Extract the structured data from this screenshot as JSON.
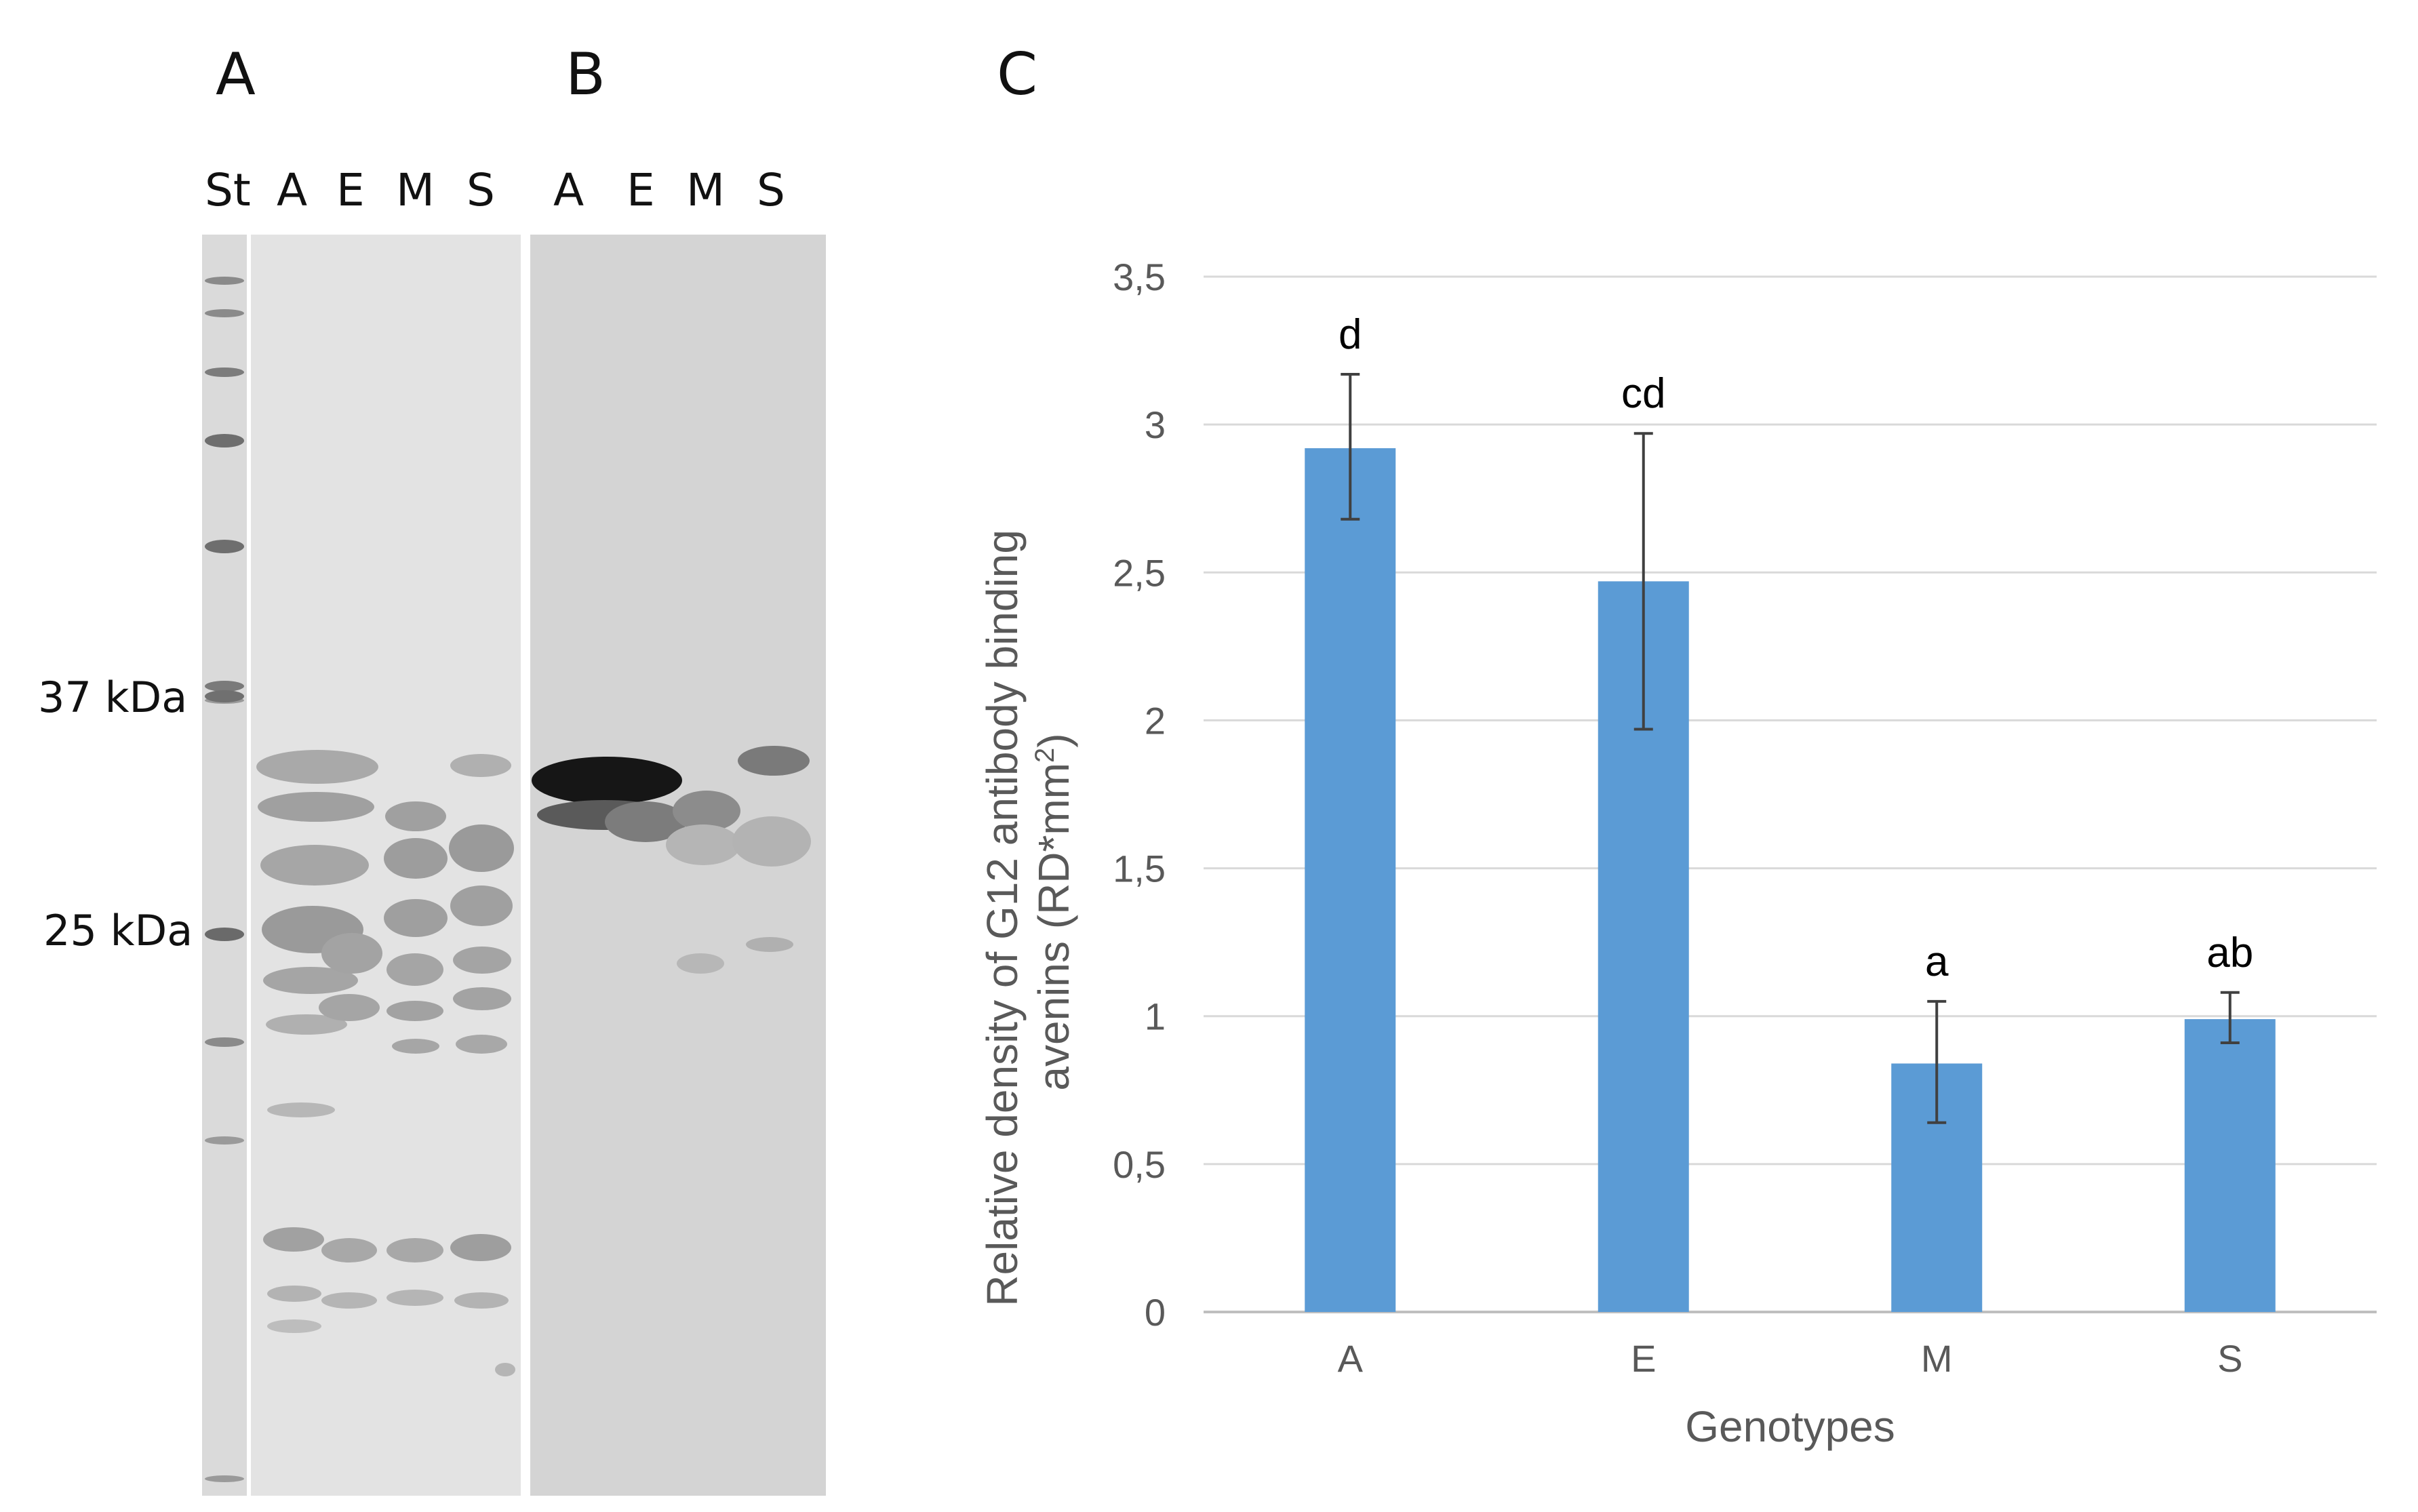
{
  "panels": {
    "a_letter": "A",
    "b_letter": "B",
    "c_letter": "C"
  },
  "gel_a": {
    "lanes": [
      "St",
      "A",
      "E",
      "M",
      "S"
    ],
    "markers": [
      "37 kDa",
      "25 kDa"
    ]
  },
  "gel_b": {
    "lanes": [
      "A",
      "E",
      "M",
      "S"
    ]
  },
  "colors": {
    "bar": "#5B9BD5",
    "grid": "#D9D9D9",
    "axis": "#BFBFBF",
    "error_bar": "#404040",
    "gel_bg": "#E3E3E3",
    "gel_b_bg": "#D4D4D4"
  },
  "chart_data": {
    "type": "bar",
    "categories": [
      "A",
      "E",
      "M",
      "S"
    ],
    "values": [
      2.92,
      2.47,
      0.84,
      0.99
    ],
    "error_upper": [
      3.17,
      2.97,
      1.05,
      1.08
    ],
    "error_lower": [
      2.68,
      1.97,
      0.64,
      0.91
    ],
    "significance": [
      "d",
      "cd",
      "a",
      "ab"
    ],
    "yticks": [
      "0",
      "0,5",
      "1",
      "1,5",
      "2",
      "2,5",
      "3",
      "3,5"
    ],
    "ytick_values": [
      0,
      0.5,
      1,
      1.5,
      2,
      2.5,
      3,
      3.5
    ],
    "ylim": [
      0,
      3.5
    ],
    "xlabel": "Genotypes",
    "ylabel_line1": "Relative density of G12 antibody  binding",
    "ylabel_line2_prefix": "avenins  (RD*mm",
    "ylabel_superscript": "2",
    "ylabel_line2_suffix": ")",
    "grid": true,
    "legend": "none"
  }
}
